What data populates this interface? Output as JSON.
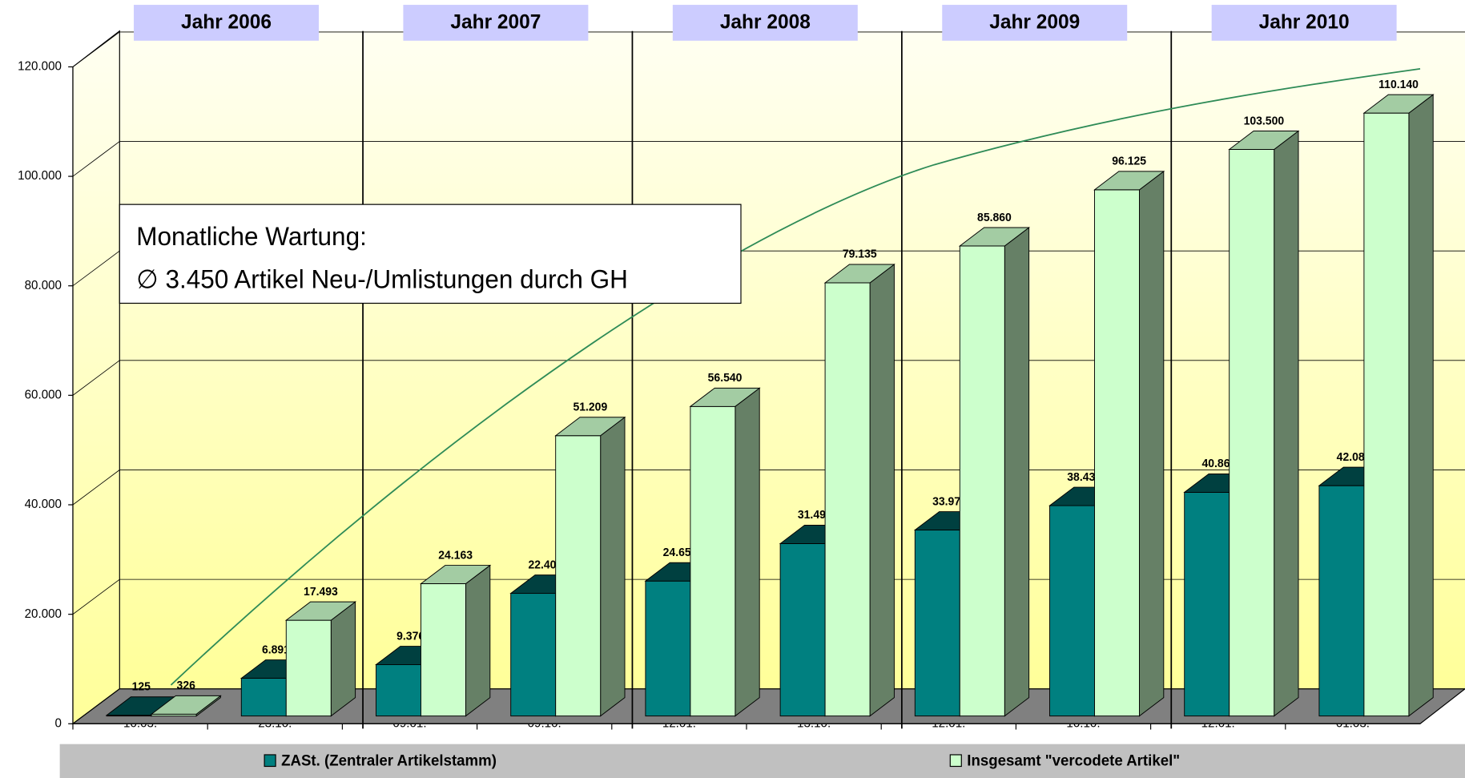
{
  "chart_data": {
    "type": "bar3d",
    "categories": [
      "10.03.",
      "23.10.",
      "09.01.",
      "09.10.",
      "12.01.",
      "13.10.",
      "12.01.",
      "10.10.",
      "12.01.",
      "01.03."
    ],
    "groups": [
      "Jahr 2006",
      "Jahr 2007",
      "Jahr 2008",
      "Jahr 2009",
      "Jahr 2010"
    ],
    "series": [
      {
        "name": "ZASt. (Zentraler Artikelstamm)",
        "color": "#008080",
        "values": [
          125,
          6891,
          9376,
          22401,
          24650,
          31490,
          33970,
          38430,
          40860,
          42080
        ],
        "value_labels": [
          "125",
          "6.891",
          "9.376",
          "22.401",
          "24.650",
          "31.490",
          "33.970",
          "38.430",
          "40.860",
          "42.080"
        ]
      },
      {
        "name": "Insgesamt \"vercodete Artikel\"",
        "color": "#ccffcc",
        "values": [
          326,
          17493,
          24163,
          51209,
          56540,
          79135,
          85860,
          96125,
          103500,
          110140
        ],
        "value_labels": [
          "326",
          "17.493",
          "24.163",
          "51.209",
          "56.540",
          "79.135",
          "85.860",
          "96.125",
          "103.500",
          "110.140"
        ]
      }
    ],
    "annotation": [
      "Monatliche Wartung:",
      "∅ 3.450 Artikel Neu-/Umlistungen durch GH"
    ],
    "ylim": [
      0,
      120000
    ],
    "yticks": [
      0,
      {
        "value": 20000,
        "label": "20.000"
      },
      {
        "value": 40000,
        "label": "40.000"
      },
      {
        "value": 60000,
        "label": "60.000"
      },
      {
        "value": 80000,
        "label": "80.000"
      },
      {
        "value": 100000,
        "label": "100.000"
      },
      {
        "value": 120000,
        "label": "120.000"
      }
    ],
    "grid": true
  }
}
